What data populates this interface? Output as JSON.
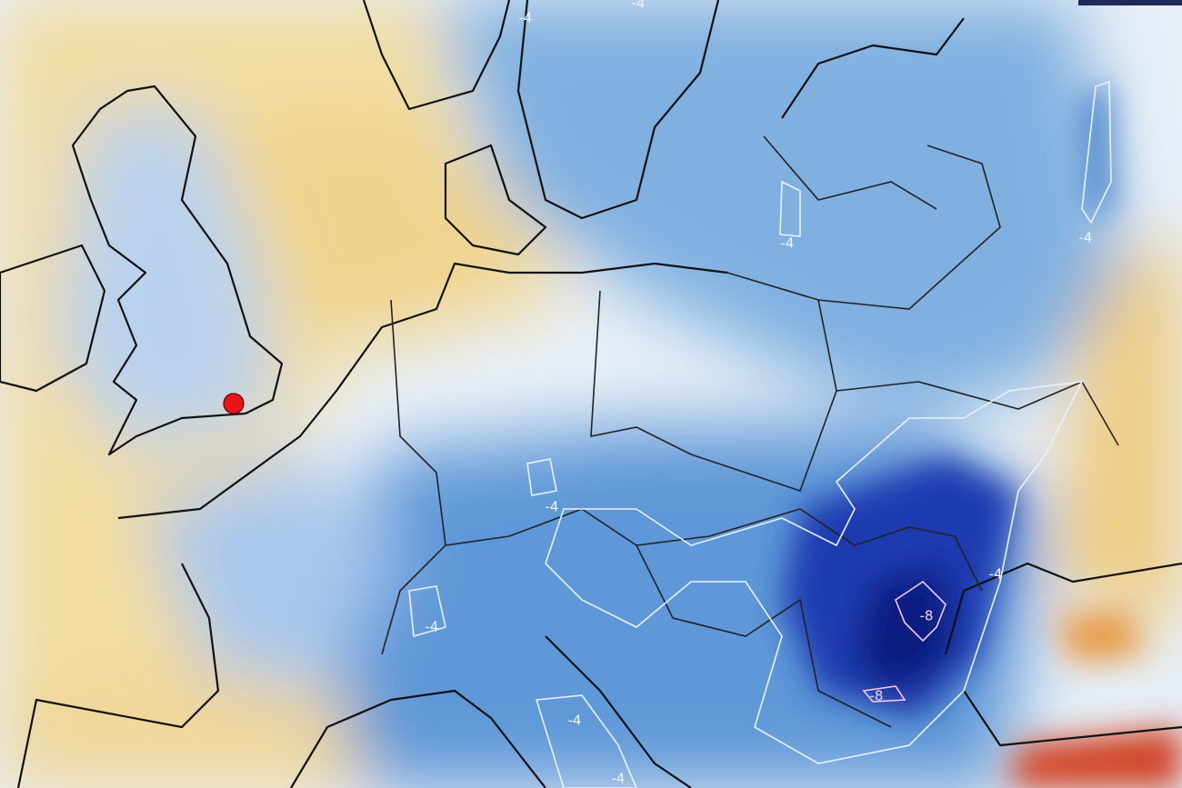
{
  "map": {
    "contour_labels": [
      "-4",
      "-4",
      "-4",
      "-4",
      "-4",
      "-4",
      "-4",
      "-4",
      "-4",
      "-8",
      "-8"
    ]
  }
}
